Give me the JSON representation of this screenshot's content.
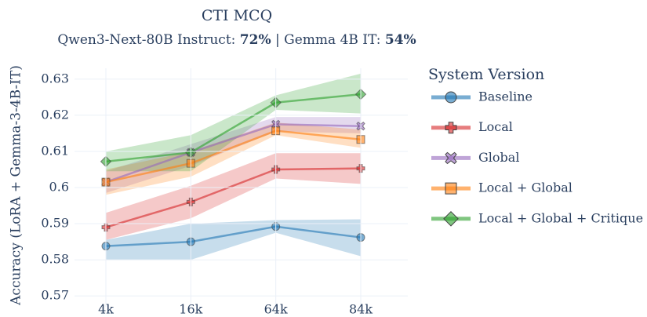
{
  "chart_data": {
    "type": "line",
    "title": "CTI MCQ",
    "subtitle": [
      "Qwen3-Next-80B Instruct: ",
      "72%",
      " | Gemma 4B IT: ",
      "54%"
    ],
    "y_label": "Accuracy (LoRA + Gemma-3-4B-IT)",
    "legend_title": "System Version",
    "legend": "right",
    "grid": true,
    "categories": [
      "4k",
      "16k",
      "64k",
      "84k"
    ],
    "ylim": [
      0.567,
      0.633
    ],
    "yticks": [
      0.57,
      0.58,
      0.59,
      0.6,
      0.61,
      0.62,
      0.63
    ],
    "series": [
      {
        "name": "Baseline",
        "color": "#1f77b4",
        "marker": "circle",
        "values": [
          0.5838,
          0.585,
          0.5892,
          0.5862
        ],
        "lower": [
          0.58,
          0.58,
          0.5875,
          0.581
        ],
        "upper": [
          0.5855,
          0.59,
          0.591,
          0.5912
        ]
      },
      {
        "name": "Local",
        "color": "#d62728",
        "marker": "cross",
        "values": [
          0.589,
          0.596,
          0.605,
          0.6053
        ],
        "lower": [
          0.5855,
          0.5915,
          0.6025,
          0.601
        ],
        "upper": [
          0.593,
          0.6005,
          0.6095,
          0.6095
        ]
      },
      {
        "name": "Global",
        "color": "#9467bd",
        "marker": "x",
        "values": [
          0.6015,
          0.6097,
          0.6175,
          0.617
        ],
        "lower": [
          0.5985,
          0.606,
          0.6155,
          0.615
        ],
        "upper": [
          0.6045,
          0.612,
          0.6195,
          0.6195
        ]
      },
      {
        "name": "Local + Global",
        "color": "#ff7f0e",
        "marker": "square",
        "values": [
          0.6015,
          0.6067,
          0.6157,
          0.6133
        ],
        "lower": [
          0.598,
          0.603,
          0.6145,
          0.611
        ],
        "upper": [
          0.605,
          0.61,
          0.618,
          0.616
        ]
      },
      {
        "name": "Local + Global + Critique",
        "color": "#2ca02c",
        "marker": "diamond",
        "values": [
          0.6072,
          0.6097,
          0.6235,
          0.6258
        ],
        "lower": [
          0.6045,
          0.6045,
          0.6215,
          0.6205
        ],
        "upper": [
          0.61,
          0.6145,
          0.6255,
          0.6315
        ]
      }
    ]
  }
}
